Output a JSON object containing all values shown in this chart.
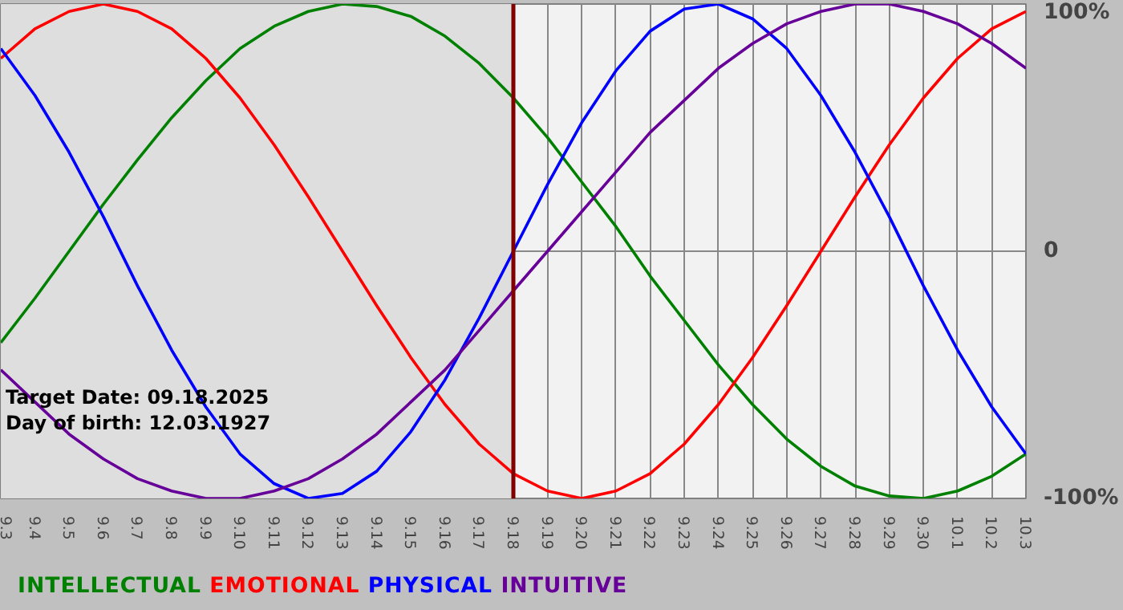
{
  "chart_data": {
    "type": "line",
    "categories": [
      "9.3",
      "9.4",
      "9.5",
      "9.6",
      "9.7",
      "9.8",
      "9.9",
      "9.10",
      "9.11",
      "9.12",
      "9.13",
      "9.14",
      "9.15",
      "9.16",
      "9.17",
      "9.18",
      "9.19",
      "9.20",
      "9.21",
      "9.22",
      "9.23",
      "9.24",
      "9.25",
      "9.26",
      "9.27",
      "9.28",
      "9.29",
      "9.30",
      "10.1",
      "10.2",
      "10.3"
    ],
    "series": [
      {
        "name": "INTELLECTUAL",
        "color": "#008000",
        "values": [
          -37,
          -19,
          0,
          19,
          37,
          54,
          69,
          82,
          91,
          97,
          100,
          99,
          95,
          87,
          76,
          62,
          46,
          28,
          10,
          -10,
          -28,
          -46,
          -62,
          -76,
          -87,
          -95,
          -99,
          -100,
          -97,
          -91,
          -82
        ]
      },
      {
        "name": "EMOTIONAL",
        "color": "#ff0000",
        "values": [
          78,
          90,
          97,
          100,
          97,
          90,
          78,
          62,
          43,
          22,
          0,
          -22,
          -43,
          -62,
          -78,
          -90,
          -97,
          -100,
          -97,
          -90,
          -78,
          -62,
          -43,
          -22,
          0,
          22,
          43,
          62,
          78,
          90,
          97
        ]
      },
      {
        "name": "PHYSICAL",
        "color": "#0000ff",
        "values": [
          82,
          63,
          40,
          14,
          -14,
          -40,
          -63,
          -82,
          -94,
          -100,
          -98,
          -89,
          -73,
          -52,
          -27,
          0,
          27,
          52,
          73,
          89,
          98,
          100,
          94,
          82,
          63,
          40,
          14,
          -14,
          -40,
          -63,
          -82
        ]
      },
      {
        "name": "INTUITIVE",
        "color": "#660099",
        "values": [
          -48,
          -61,
          -74,
          -84,
          -92,
          -97,
          -100,
          -100,
          -97,
          -92,
          -84,
          -74,
          -61,
          -48,
          -32,
          -16,
          0,
          16,
          32,
          48,
          61,
          74,
          84,
          92,
          97,
          100,
          100,
          97,
          92,
          84,
          74
        ]
      }
    ],
    "ylim": [
      -100,
      100
    ],
    "yticks": [
      {
        "value": 100,
        "label": "100%"
      },
      0,
      {
        "value": -100,
        "label": "-100%"
      }
    ],
    "grid": true,
    "legend": "bottom",
    "marker": "none",
    "line_style": "solid",
    "ref_lines": [
      {
        "axis": "x",
        "value": "9.18",
        "color": "#800000"
      }
    ],
    "bands": [
      {
        "axis": "x",
        "from": "9.3",
        "to": "9.18",
        "color": "#dedede"
      }
    ],
    "annotations": [
      "Target Date: 09.18.2025",
      "Day of birth: 12.03.1927"
    ]
  }
}
